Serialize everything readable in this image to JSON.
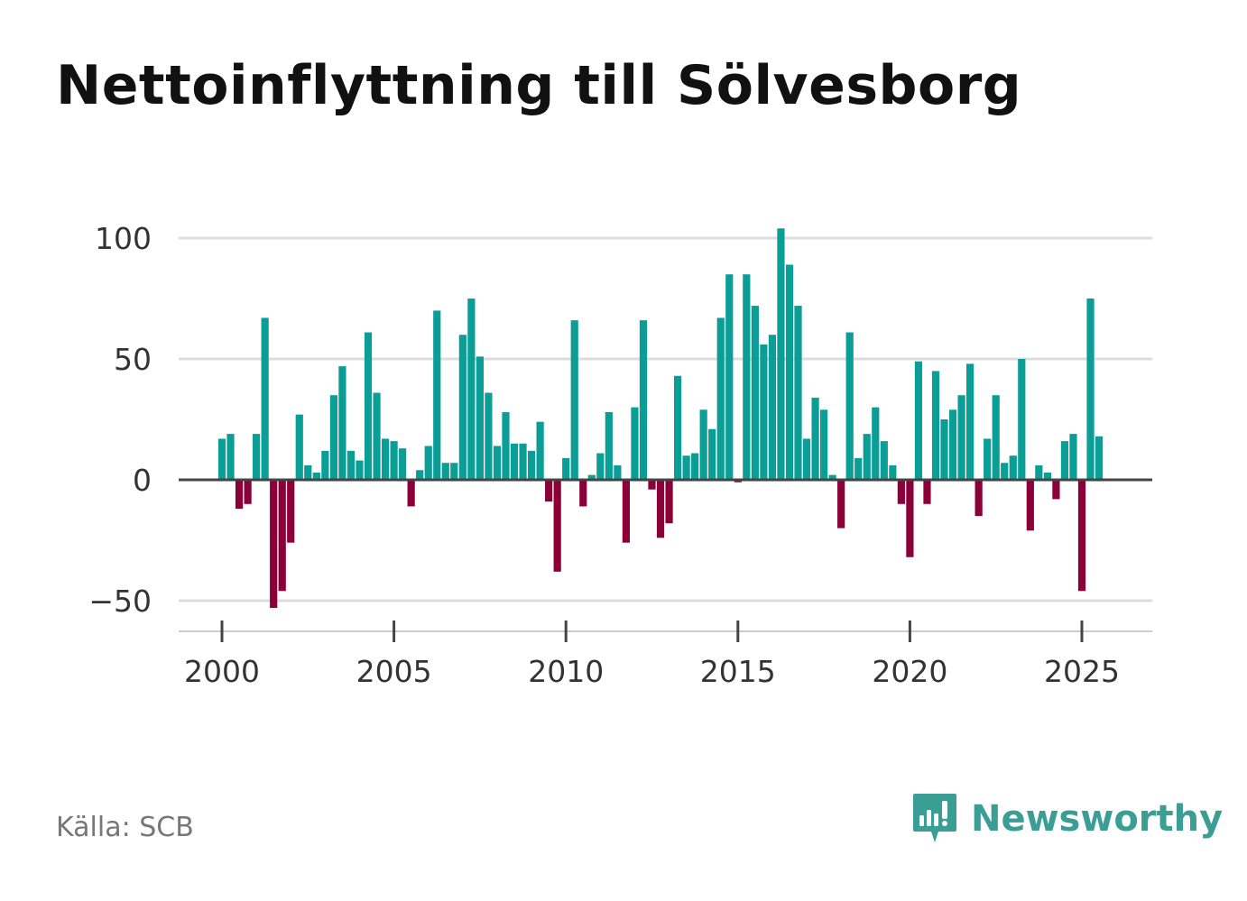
{
  "title": "Nettoinflyttning till Sölvesborg",
  "source": "Källa: SCB",
  "brand": {
    "name": "Newsworthy",
    "logo_icon": "newsworthy-chart-bubble-icon",
    "color": "#3a9e94"
  },
  "colors": {
    "positive": "#0a9e96",
    "negative": "#8c0039",
    "grid": "#dddddd",
    "zero_line": "#444444",
    "axis": "#cccccc"
  },
  "chart_data": {
    "type": "bar",
    "title": "Nettoinflyttning till Sölvesborg",
    "xlabel": "",
    "ylabel": "",
    "x_unit": "quarter",
    "xlim": [
      1999.5,
      2028.0
    ],
    "ylim": [
      -63,
      108
    ],
    "yticks": [
      -50,
      0,
      50,
      100
    ],
    "ytick_labels": [
      "−50",
      "0",
      "50",
      "100"
    ],
    "xticks": [
      2000,
      2005,
      2010,
      2015,
      2020,
      2025
    ],
    "xtick_labels": [
      "2000",
      "2005",
      "2010",
      "2015",
      "2020",
      "2025"
    ],
    "grid": true,
    "categories": [
      "2000 K1",
      "2000 K2",
      "2000 K3",
      "2000 K4",
      "2001 K1",
      "2001 K2",
      "2001 K3",
      "2001 K4",
      "2002 K1",
      "2002 K2",
      "2002 K3",
      "2002 K4",
      "2003 K1",
      "2003 K2",
      "2003 K3",
      "2003 K4",
      "2004 K1",
      "2004 K2",
      "2004 K3",
      "2004 K4",
      "2005 K1",
      "2005 K2",
      "2005 K3",
      "2005 K4",
      "2006 K1",
      "2006 K2",
      "2006 K3",
      "2006 K4",
      "2007 K1",
      "2007 K2",
      "2007 K3",
      "2007 K4",
      "2008 K1",
      "2008 K2",
      "2008 K3",
      "2008 K4",
      "2009 K1",
      "2009 K2",
      "2009 K3",
      "2009 K4",
      "2010 K1",
      "2010 K2",
      "2010 K3",
      "2010 K4",
      "2011 K1",
      "2011 K2",
      "2011 K3",
      "2011 K4",
      "2012 K1",
      "2012 K2",
      "2012 K3",
      "2012 K4",
      "2013 K1",
      "2013 K2",
      "2013 K3",
      "2013 K4",
      "2014 K1",
      "2014 K2",
      "2014 K3",
      "2014 K4",
      "2015 K1",
      "2015 K2",
      "2015 K3",
      "2015 K4",
      "2016 K1",
      "2016 K2",
      "2016 K3",
      "2016 K4",
      "2017 K1",
      "2017 K2",
      "2017 K3",
      "2017 K4",
      "2018 K1",
      "2018 K2",
      "2018 K3",
      "2018 K4",
      "2019 K1",
      "2019 K2",
      "2019 K3",
      "2019 K4",
      "2020 K1",
      "2020 K2",
      "2020 K3",
      "2020 K4",
      "2021 K1",
      "2021 K2",
      "2021 K3",
      "2021 K4",
      "2022 K1",
      "2022 K2",
      "2022 K3",
      "2022 K4",
      "2023 K1",
      "2023 K2",
      "2023 K3",
      "2023 K4",
      "2024 K1",
      "2024 K2",
      "2024 K3",
      "2024 K4",
      "2025 K1",
      "2025 K2",
      "2025 K3"
    ],
    "values": [
      17,
      19,
      -12,
      -10,
      19,
      67,
      -53,
      -46,
      -26,
      27,
      6,
      3,
      12,
      35,
      47,
      12,
      8,
      61,
      36,
      17,
      16,
      13,
      -11,
      4,
      14,
      70,
      7,
      7,
      60,
      75,
      51,
      36,
      14,
      28,
      15,
      15,
      12,
      24,
      -9,
      -38,
      9,
      66,
      -11,
      2,
      11,
      28,
      6,
      -26,
      30,
      66,
      -4,
      -24,
      -18,
      43,
      10,
      11,
      29,
      21,
      67,
      85,
      -1,
      85,
      72,
      56,
      60,
      104,
      89,
      72,
      17,
      34,
      29,
      2,
      -20,
      61,
      9,
      19,
      30,
      16,
      6,
      -10,
      -32,
      49,
      -10,
      45,
      25,
      29,
      35,
      48,
      -15,
      17,
      35,
      7,
      10,
      50,
      -21,
      6,
      3,
      -8,
      16,
      19,
      -46,
      75,
      18
    ]
  }
}
